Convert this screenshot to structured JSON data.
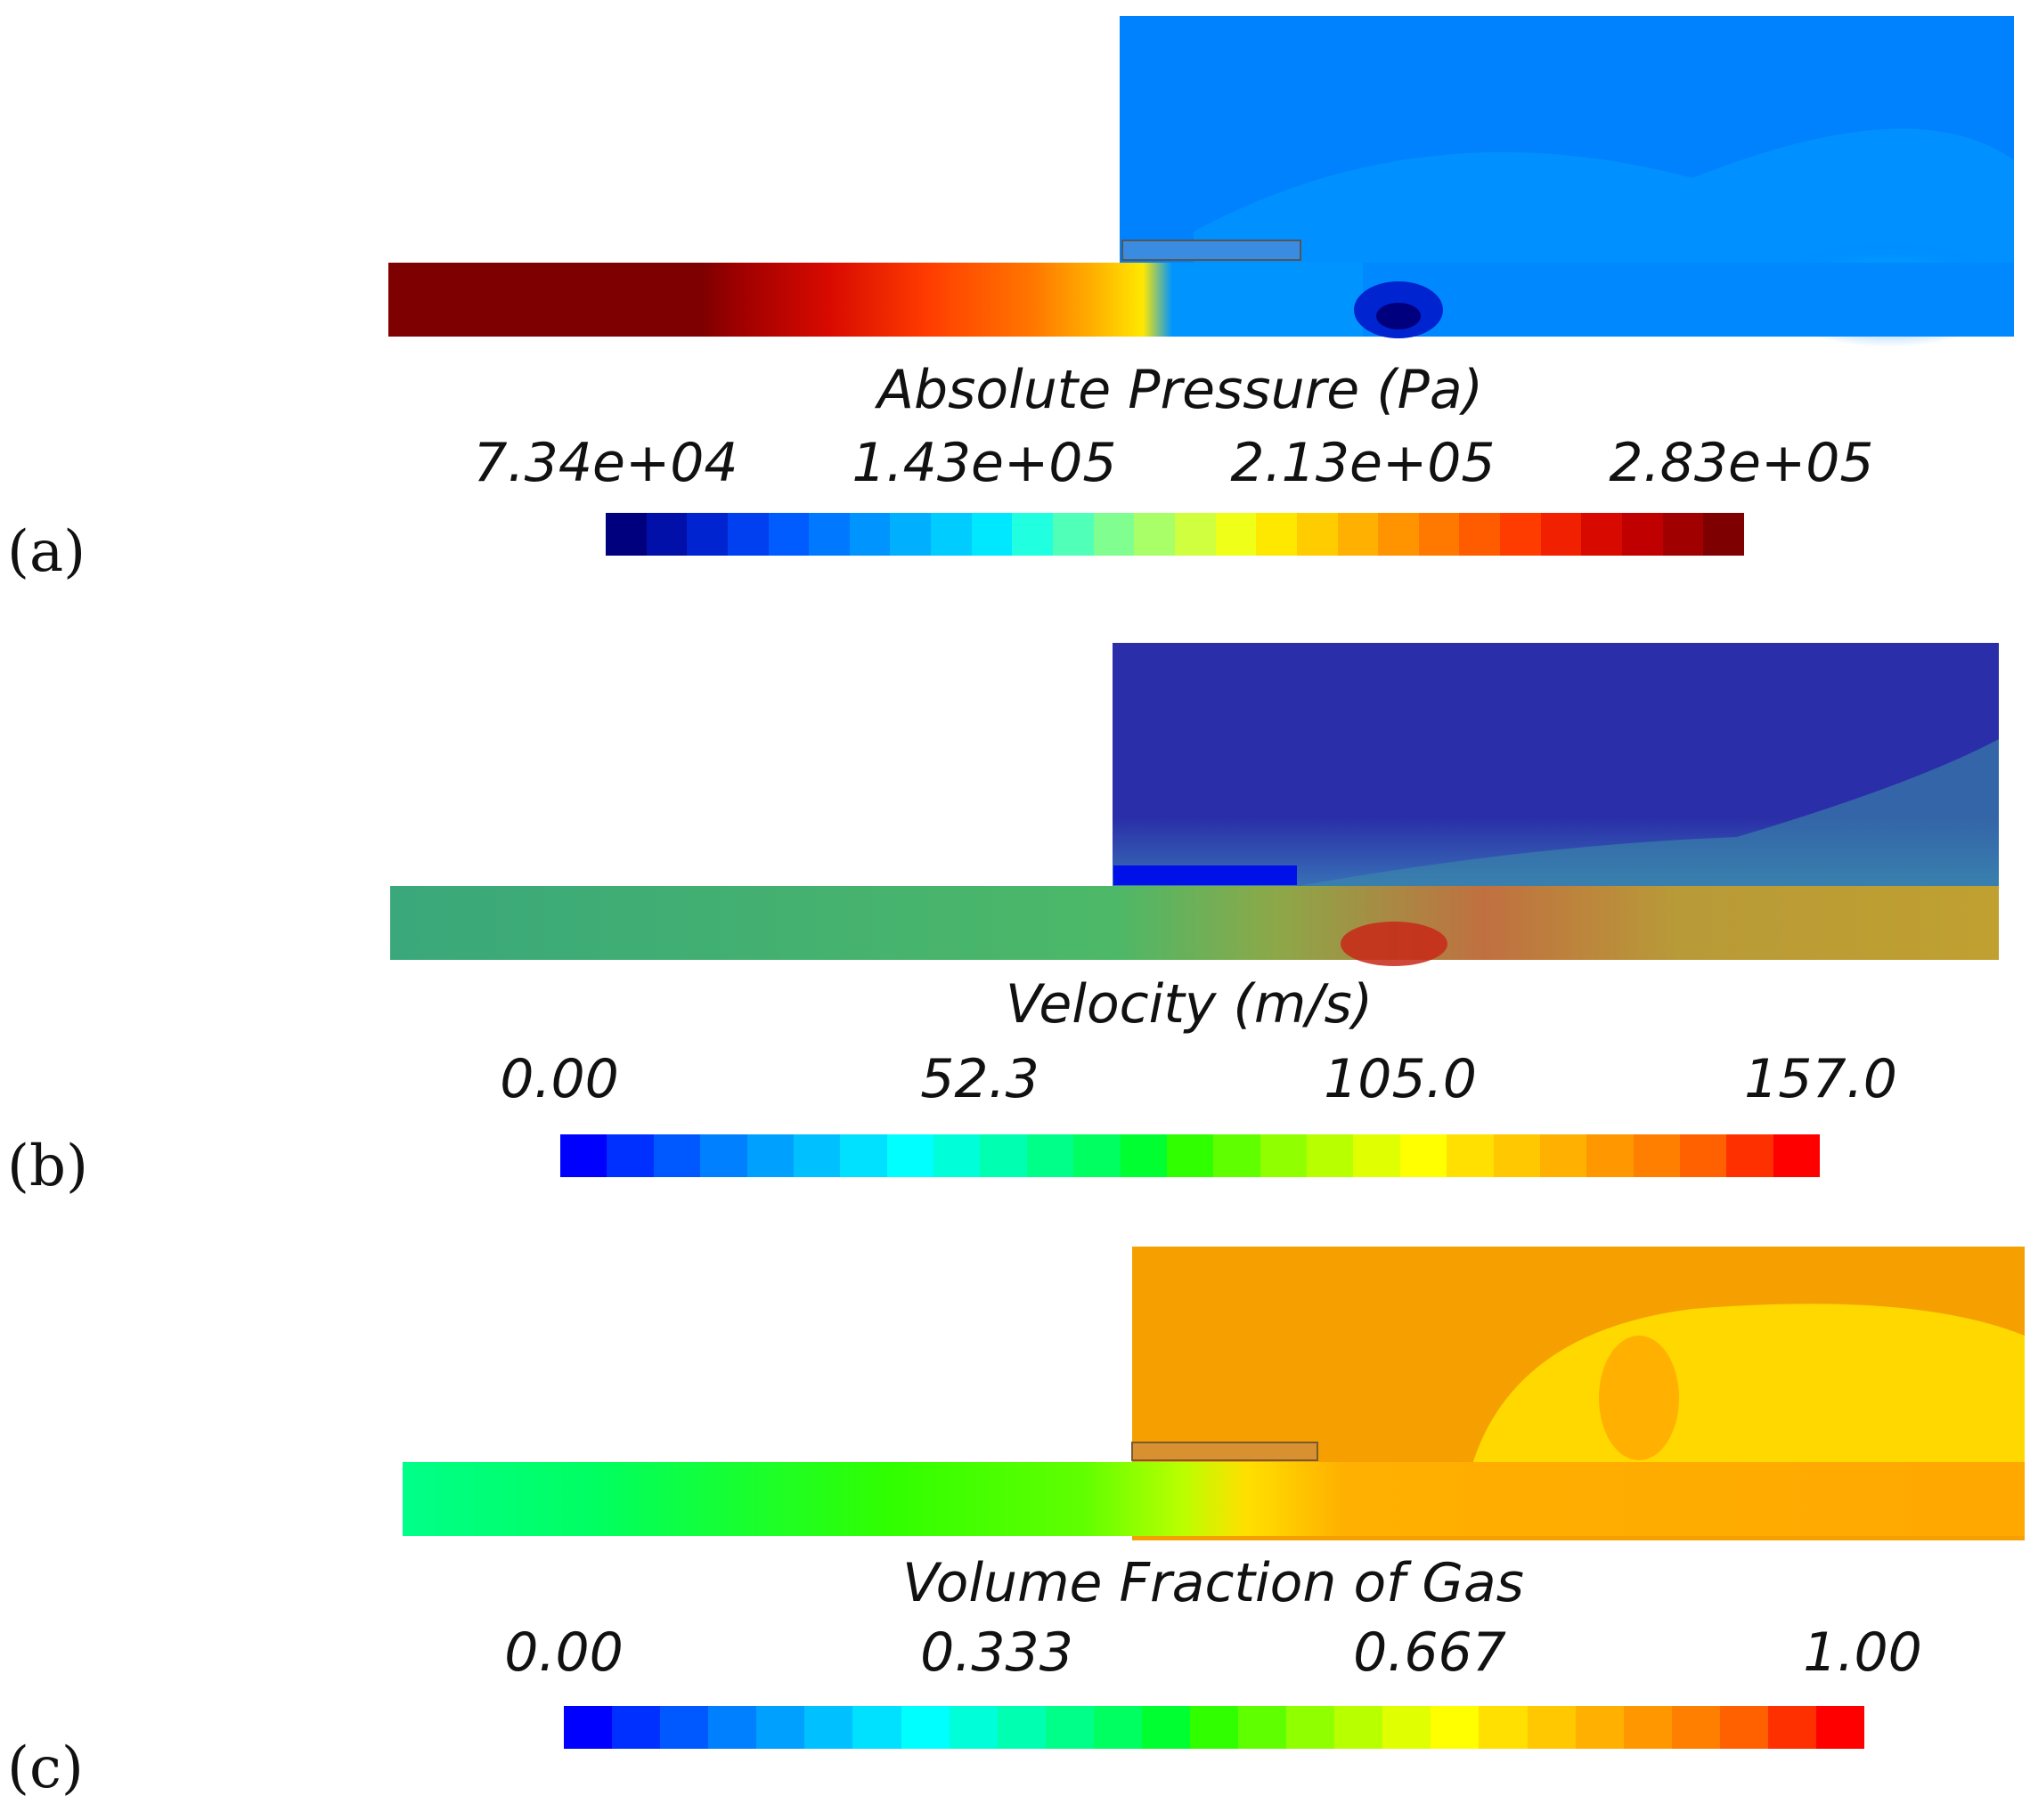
{
  "panels": [
    {
      "label": "(a)",
      "quantity": "Absolute Pressure (Pa)",
      "ticks": [
        "7.34e+04",
        "1.43e+05",
        "2.13e+05",
        "2.83e+05"
      ],
      "colormap": [
        "#00007f",
        "#0010a8",
        "#0024d0",
        "#0040f0",
        "#005cff",
        "#0078ff",
        "#0094ff",
        "#00b0ff",
        "#00ccff",
        "#00e8ff",
        "#20ffe0",
        "#50ffb8",
        "#80ff90",
        "#a8ff68",
        "#d0ff40",
        "#f0ff18",
        "#ffe800",
        "#ffcc00",
        "#ffb000",
        "#ff9400",
        "#ff7800",
        "#ff5c00",
        "#ff3c00",
        "#f02000",
        "#d80a00",
        "#c00000",
        "#a00000",
        "#7f0000"
      ]
    },
    {
      "label": "(b)",
      "quantity": "Velocity (m/s)",
      "ticks": [
        "0.00",
        "52.3",
        "105.0",
        "157.0"
      ],
      "colormap": [
        "#0000ff",
        "#0030ff",
        "#0058ff",
        "#0080ff",
        "#00a0ff",
        "#00c0ff",
        "#00e0ff",
        "#00ffff",
        "#00ffd8",
        "#00ffb0",
        "#00ff88",
        "#00ff60",
        "#00ff30",
        "#30ff00",
        "#60ff00",
        "#90ff00",
        "#b8ff00",
        "#e0ff00",
        "#ffff00",
        "#ffe000",
        "#ffc800",
        "#ffb000",
        "#ff9800",
        "#ff8000",
        "#ff6000",
        "#ff3000",
        "#ff0000"
      ]
    },
    {
      "label": "(c)",
      "quantity": "Volume Fraction of Gas",
      "ticks": [
        "0.00",
        "0.333",
        "0.667",
        "1.00"
      ],
      "colormap": [
        "#0000ff",
        "#0030ff",
        "#0058ff",
        "#0080ff",
        "#00a0ff",
        "#00c0ff",
        "#00e0ff",
        "#00ffff",
        "#00ffd8",
        "#00ffb0",
        "#00ff88",
        "#00ff60",
        "#00ff30",
        "#30ff00",
        "#60ff00",
        "#90ff00",
        "#b8ff00",
        "#e0ff00",
        "#ffff00",
        "#ffe000",
        "#ffc800",
        "#ffb000",
        "#ff9800",
        "#ff8000",
        "#ff6000",
        "#ff3000",
        "#ff0000"
      ]
    }
  ]
}
